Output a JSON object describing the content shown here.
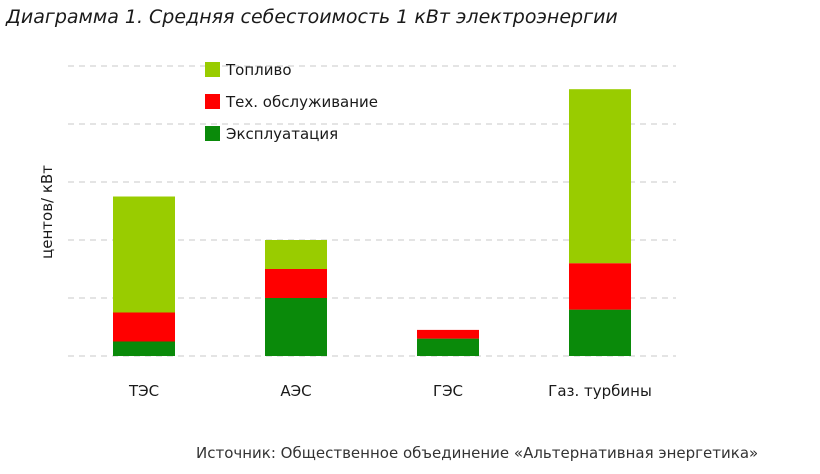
{
  "chart_data": {
    "type": "bar",
    "stacked": true,
    "title": "Диаграмма 1. Средняя себестоимость 1 кВт электроэнергии",
    "xlabel": "",
    "ylabel": "центов/ кВт",
    "categories": [
      "ТЭС",
      "АЭС",
      "ГЭС",
      "Газ. турбины"
    ],
    "ylim": [
      0,
      5
    ],
    "grid": true,
    "legend": "top-left",
    "series": [
      {
        "name": "Эксплуатация",
        "color": "#0a8a0a",
        "values": [
          0.25,
          1.0,
          0.3,
          0.8
        ]
      },
      {
        "name": "Тех. обслуживание",
        "color": "#ff0000",
        "values": [
          0.5,
          0.5,
          0.15,
          0.8
        ]
      },
      {
        "name": "Топливо",
        "color": "#99cc00",
        "values": [
          2.0,
          0.5,
          0,
          3.0
        ]
      }
    ],
    "legend_order": [
      "Топливо",
      "Тех. обслуживание",
      "Эксплуатация"
    ]
  },
  "source": "Источник: Общественное объединение «Альтернативная энергетика»"
}
